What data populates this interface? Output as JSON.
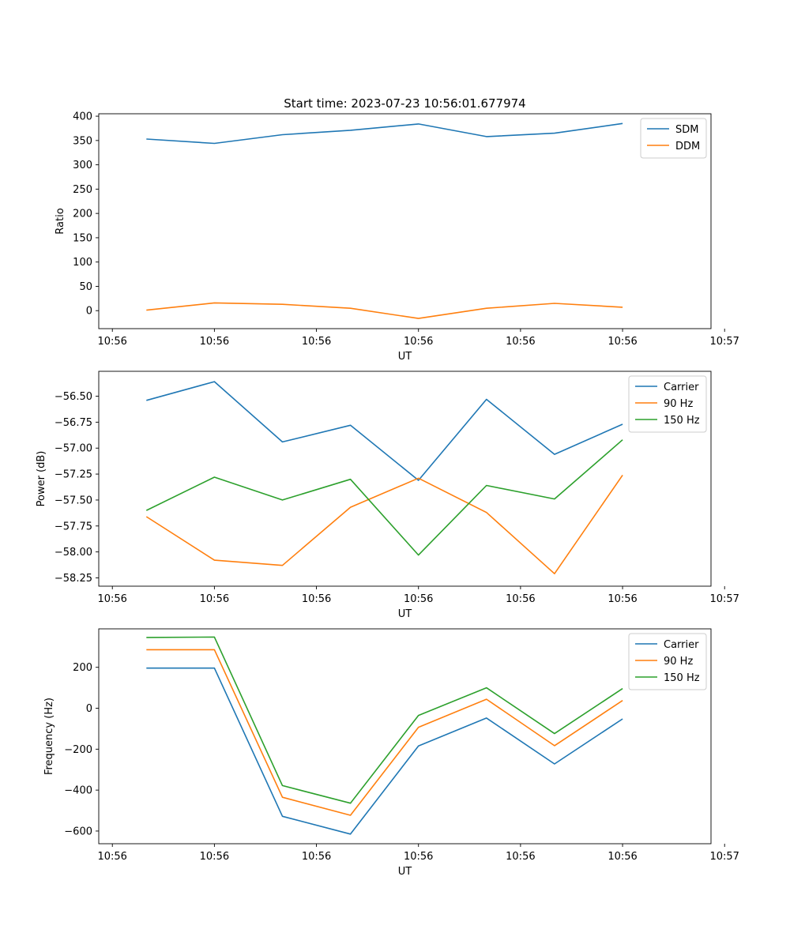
{
  "figure_title": "Start time: 2023-07-23 10:56:01.677974",
  "colors": {
    "blue": "#1f77b4",
    "orange": "#ff7f0e",
    "green": "#2ca02c"
  },
  "chart_data": [
    {
      "type": "line",
      "title": "Start time: 2023-07-23 10:56:01.677974",
      "xlabel": "UT",
      "ylabel": "Ratio",
      "x": [
        1,
        2,
        3,
        4,
        5,
        6,
        7,
        8
      ],
      "xlim": [
        0.3,
        9.3
      ],
      "xticks": [
        0.5,
        2.0,
        3.5,
        5.0,
        6.5,
        8.0,
        9.5
      ],
      "xtick_labels": [
        "10:56",
        "10:56",
        "10:56",
        "10:56",
        "10:56",
        "10:56",
        "10:57"
      ],
      "ylim": [
        -37,
        405
      ],
      "yticks": [
        0,
        50,
        100,
        150,
        200,
        250,
        300,
        350,
        400
      ],
      "ytick_labels": [
        "0",
        "50",
        "100",
        "150",
        "200",
        "250",
        "300",
        "350",
        "400"
      ],
      "legend_position": "upper-right",
      "series": [
        {
          "name": "SDM",
          "color": "#1f77b4",
          "values": [
            353,
            344,
            362,
            371,
            384,
            358,
            365,
            385
          ]
        },
        {
          "name": "DDM",
          "color": "#ff7f0e",
          "values": [
            1,
            16,
            13,
            5,
            -16,
            5,
            15,
            7
          ]
        }
      ]
    },
    {
      "type": "line",
      "title": "",
      "xlabel": "UT",
      "ylabel": "Power (dB)",
      "x": [
        1,
        2,
        3,
        4,
        5,
        6,
        7,
        8
      ],
      "xlim": [
        0.3,
        9.3
      ],
      "xticks": [
        0.5,
        2.0,
        3.5,
        5.0,
        6.5,
        8.0,
        9.5
      ],
      "xtick_labels": [
        "10:56",
        "10:56",
        "10:56",
        "10:56",
        "10:56",
        "10:56",
        "10:57"
      ],
      "ylim": [
        -58.33,
        -56.26
      ],
      "yticks": [
        -58.25,
        -58.0,
        -57.75,
        -57.5,
        -57.25,
        -57.0,
        -56.75,
        -56.5
      ],
      "ytick_labels": [
        "−58.25",
        "−58.00",
        "−57.75",
        "−57.50",
        "−57.25",
        "−57.00",
        "−56.75",
        "−56.50"
      ],
      "legend_position": "upper-right",
      "series": [
        {
          "name": "Carrier",
          "color": "#1f77b4",
          "values": [
            -56.54,
            -56.36,
            -56.94,
            -56.78,
            -57.31,
            -56.53,
            -57.06,
            -56.77
          ]
        },
        {
          "name": "90 Hz",
          "color": "#ff7f0e",
          "values": [
            -57.66,
            -58.08,
            -58.13,
            -57.57,
            -57.29,
            -57.62,
            -58.21,
            -57.26
          ]
        },
        {
          "name": "150 Hz",
          "color": "#2ca02c",
          "values": [
            -57.6,
            -57.28,
            -57.5,
            -57.3,
            -58.03,
            -57.36,
            -57.49,
            -56.92
          ]
        }
      ]
    },
    {
      "type": "line",
      "title": "",
      "xlabel": "UT",
      "ylabel": "Frequency (Hz)",
      "x": [
        1,
        2,
        3,
        4,
        5,
        6,
        7,
        8
      ],
      "xlim": [
        0.3,
        9.3
      ],
      "xticks": [
        0.5,
        2.0,
        3.5,
        5.0,
        6.5,
        8.0,
        9.5
      ],
      "xtick_labels": [
        "10:56",
        "10:56",
        "10:56",
        "10:56",
        "10:56",
        "10:56",
        "10:57"
      ],
      "ylim": [
        -662,
        388
      ],
      "yticks": [
        -600,
        -400,
        -200,
        0,
        200
      ],
      "ytick_labels": [
        "−600",
        "−400",
        "−200",
        "0",
        "200"
      ],
      "legend_position": "upper-right",
      "series": [
        {
          "name": "Carrier",
          "color": "#1f77b4",
          "values": [
            196,
            196,
            -528,
            -615,
            -184,
            -48,
            -272,
            -52
          ]
        },
        {
          "name": "90 Hz",
          "color": "#ff7f0e",
          "values": [
            286,
            286,
            -435,
            -523,
            -93,
            44,
            -183,
            38
          ]
        },
        {
          "name": "150 Hz",
          "color": "#2ca02c",
          "values": [
            346,
            348,
            -378,
            -464,
            -35,
            100,
            -124,
            96
          ]
        }
      ]
    }
  ]
}
